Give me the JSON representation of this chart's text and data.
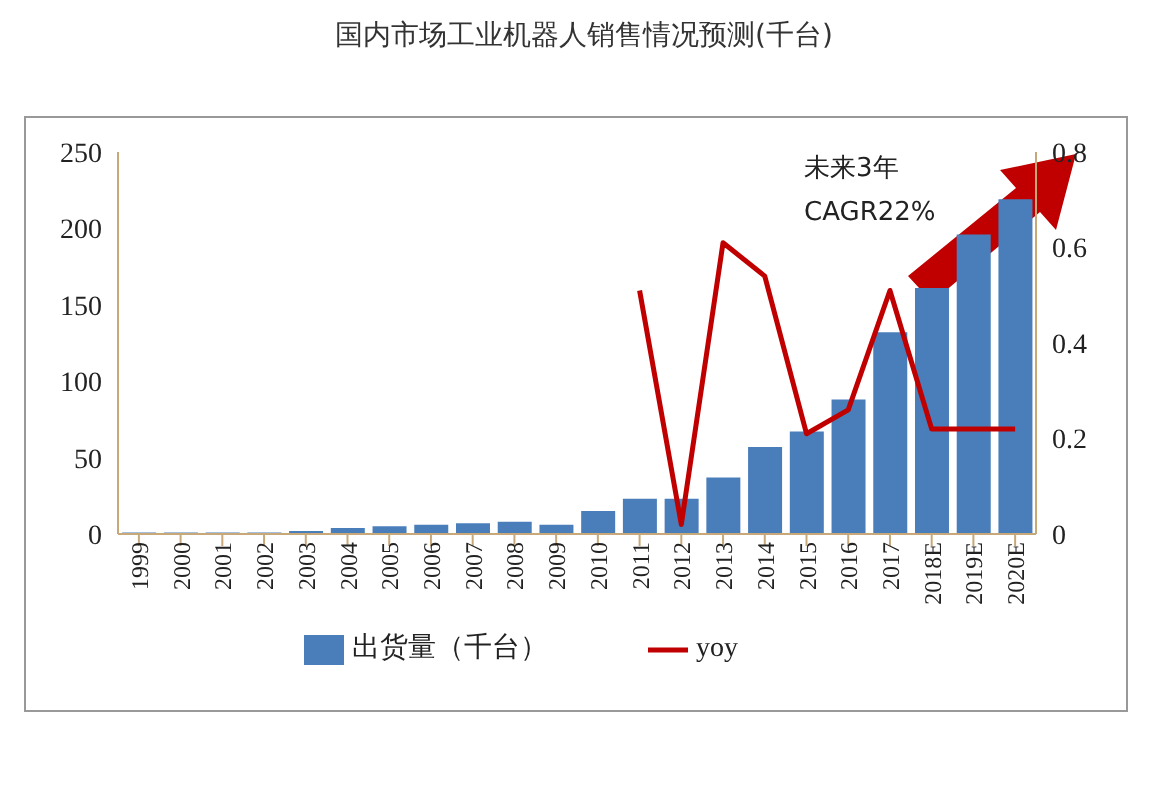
{
  "chart_data": {
    "type": "bar",
    "title": "国内市场工业机器人销售情况预测(千台)",
    "categories": [
      "1999",
      "2000",
      "2001",
      "2002",
      "2003",
      "2004",
      "2005",
      "2006",
      "2007",
      "2008",
      "2009",
      "2010",
      "2011",
      "2012",
      "2013",
      "2014",
      "2015",
      "2016",
      "2017",
      "2018E",
      "2019E",
      "2020E"
    ],
    "series": [
      {
        "name": "出货量（千台）",
        "color": "#4a7ebb",
        "values": [
          1,
          1,
          1,
          1,
          2,
          4,
          5,
          6,
          7,
          8,
          6,
          15,
          23,
          23,
          37,
          57,
          67,
          88,
          132,
          161,
          196,
          219
        ]
      },
      {
        "name": "yoy",
        "type": "line",
        "axis": "y2",
        "color": "#c00000",
        "values": [
          null,
          null,
          null,
          null,
          null,
          null,
          null,
          null,
          null,
          null,
          null,
          null,
          0.51,
          0.02,
          0.61,
          0.54,
          0.21,
          0.26,
          0.51,
          0.22,
          0.22,
          0.22
        ]
      }
    ],
    "ylim": [
      0,
      250
    ],
    "yticks": [
      0,
      50,
      100,
      150,
      200,
      250
    ],
    "y2lim": [
      0,
      0.8
    ],
    "y2ticks": [
      0,
      0.2,
      0.4,
      0.6,
      0.8
    ],
    "annotations": [
      "未来3年\nCAGR22%"
    ],
    "legend": "bottom",
    "grid": false,
    "marker": "none"
  }
}
